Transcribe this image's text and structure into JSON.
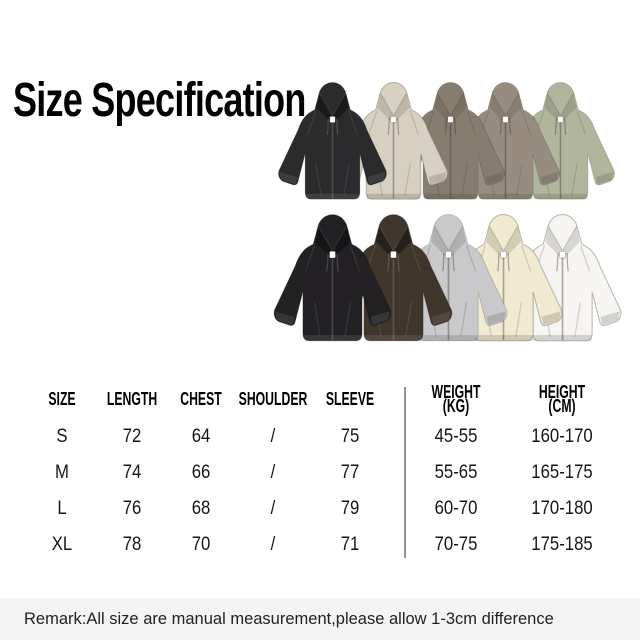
{
  "title": "Size Specification",
  "table": {
    "headers": [
      {
        "label": "SIZE"
      },
      {
        "label": "LENGTH"
      },
      {
        "label": "CHEST"
      },
      {
        "label": "SHOULDER"
      },
      {
        "label": "SLEEVE"
      },
      {
        "label": "WEIGHT",
        "unit": "(KG)"
      },
      {
        "label": "HEIGHT",
        "unit": "(CM)"
      }
    ],
    "rows": [
      {
        "size": "S",
        "length": "72",
        "chest": "64",
        "shoulder": "/",
        "sleeve": "75",
        "weight_kg": "45-55",
        "height_cm": "160-170"
      },
      {
        "size": "M",
        "length": "74",
        "chest": "66",
        "shoulder": "/",
        "sleeve": "77",
        "weight_kg": "55-65",
        "height_cm": "165-175"
      },
      {
        "size": "L",
        "length": "76",
        "chest": "68",
        "shoulder": "/",
        "sleeve": "79",
        "weight_kg": "60-70",
        "height_cm": "170-180"
      },
      {
        "size": "XL",
        "length": "78",
        "chest": "70",
        "shoulder": "/",
        "sleeve": "71",
        "weight_kg": "70-75",
        "height_cm": "175-185"
      }
    ]
  },
  "remark": "Remark:All size are manual measurement,please allow 1-3cm difference",
  "hoodies": {
    "top_row": [
      {
        "name": "black",
        "color": "#2b2a2c"
      },
      {
        "name": "beige",
        "color": "#d7d0c0"
      },
      {
        "name": "taupe-brown",
        "color": "#867d6e"
      },
      {
        "name": "mushroom-gray",
        "color": "#988c7f"
      },
      {
        "name": "sage-green",
        "color": "#b1b59b"
      }
    ],
    "bottom_row": [
      {
        "name": "black",
        "color": "#232124"
      },
      {
        "name": "dark-brown",
        "color": "#41362c"
      },
      {
        "name": "heather-gray",
        "color": "#c9c9cb"
      },
      {
        "name": "cream",
        "color": "#f1ead1"
      },
      {
        "name": "white",
        "color": "#f6f5f2"
      }
    ]
  }
}
